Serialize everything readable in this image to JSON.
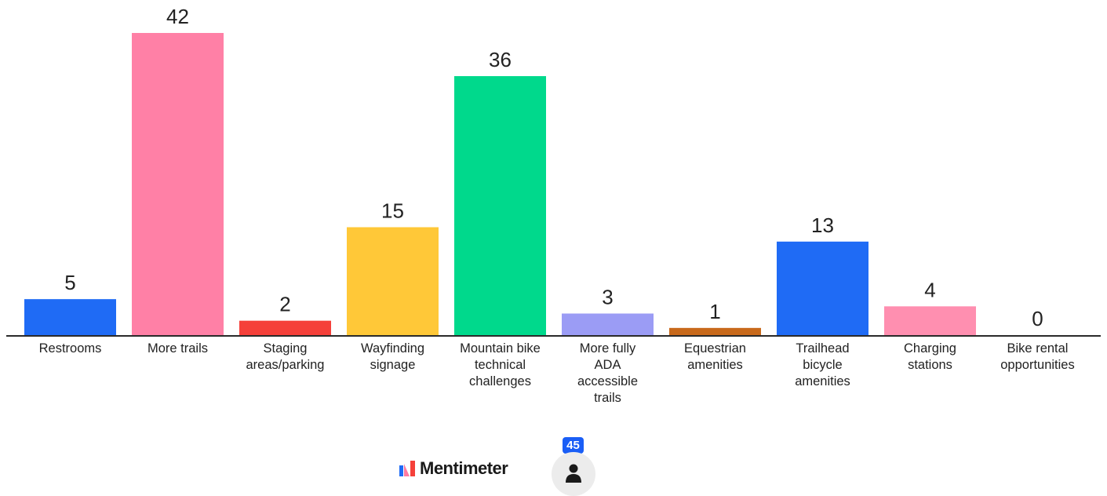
{
  "chart_data": {
    "type": "bar",
    "categories": [
      "Restrooms",
      "More trails",
      "Staging areas/parking",
      "Wayfinding signage",
      "Mountain bike technical challenges",
      "More fully ADA accessible trails",
      "Equestrian amenities",
      "Trailhead bicycle amenities",
      "Charging stations",
      "Bike rental opportunities"
    ],
    "category_lines": [
      [
        "Restrooms"
      ],
      [
        "More trails"
      ],
      [
        "Staging",
        "areas/parking"
      ],
      [
        "Wayfinding",
        "signage"
      ],
      [
        "Mountain bike",
        "technical",
        "challenges"
      ],
      [
        "More fully",
        "ADA",
        "accessible",
        "trails"
      ],
      [
        "Equestrian",
        "amenities"
      ],
      [
        "Trailhead",
        "bicycle",
        "amenities"
      ],
      [
        "Charging",
        "stations"
      ],
      [
        "Bike rental",
        "opportunities"
      ]
    ],
    "values": [
      5,
      42,
      2,
      15,
      36,
      3,
      1,
      13,
      4,
      0
    ],
    "colors": [
      "#1f6bf5",
      "#ff80a6",
      "#f5403a",
      "#ffc838",
      "#00d98c",
      "#9b9cf5",
      "#c8691b",
      "#1f6bf5",
      "#ff8fb0",
      "#cccccc"
    ],
    "ylim": [
      0,
      42
    ],
    "grid": false,
    "title": "",
    "xlabel": "",
    "ylabel": ""
  },
  "footer": {
    "brand": "Mentimeter",
    "responses": "45",
    "participant_icon": "person-icon",
    "logo_icon": "mentimeter-logo-icon"
  }
}
